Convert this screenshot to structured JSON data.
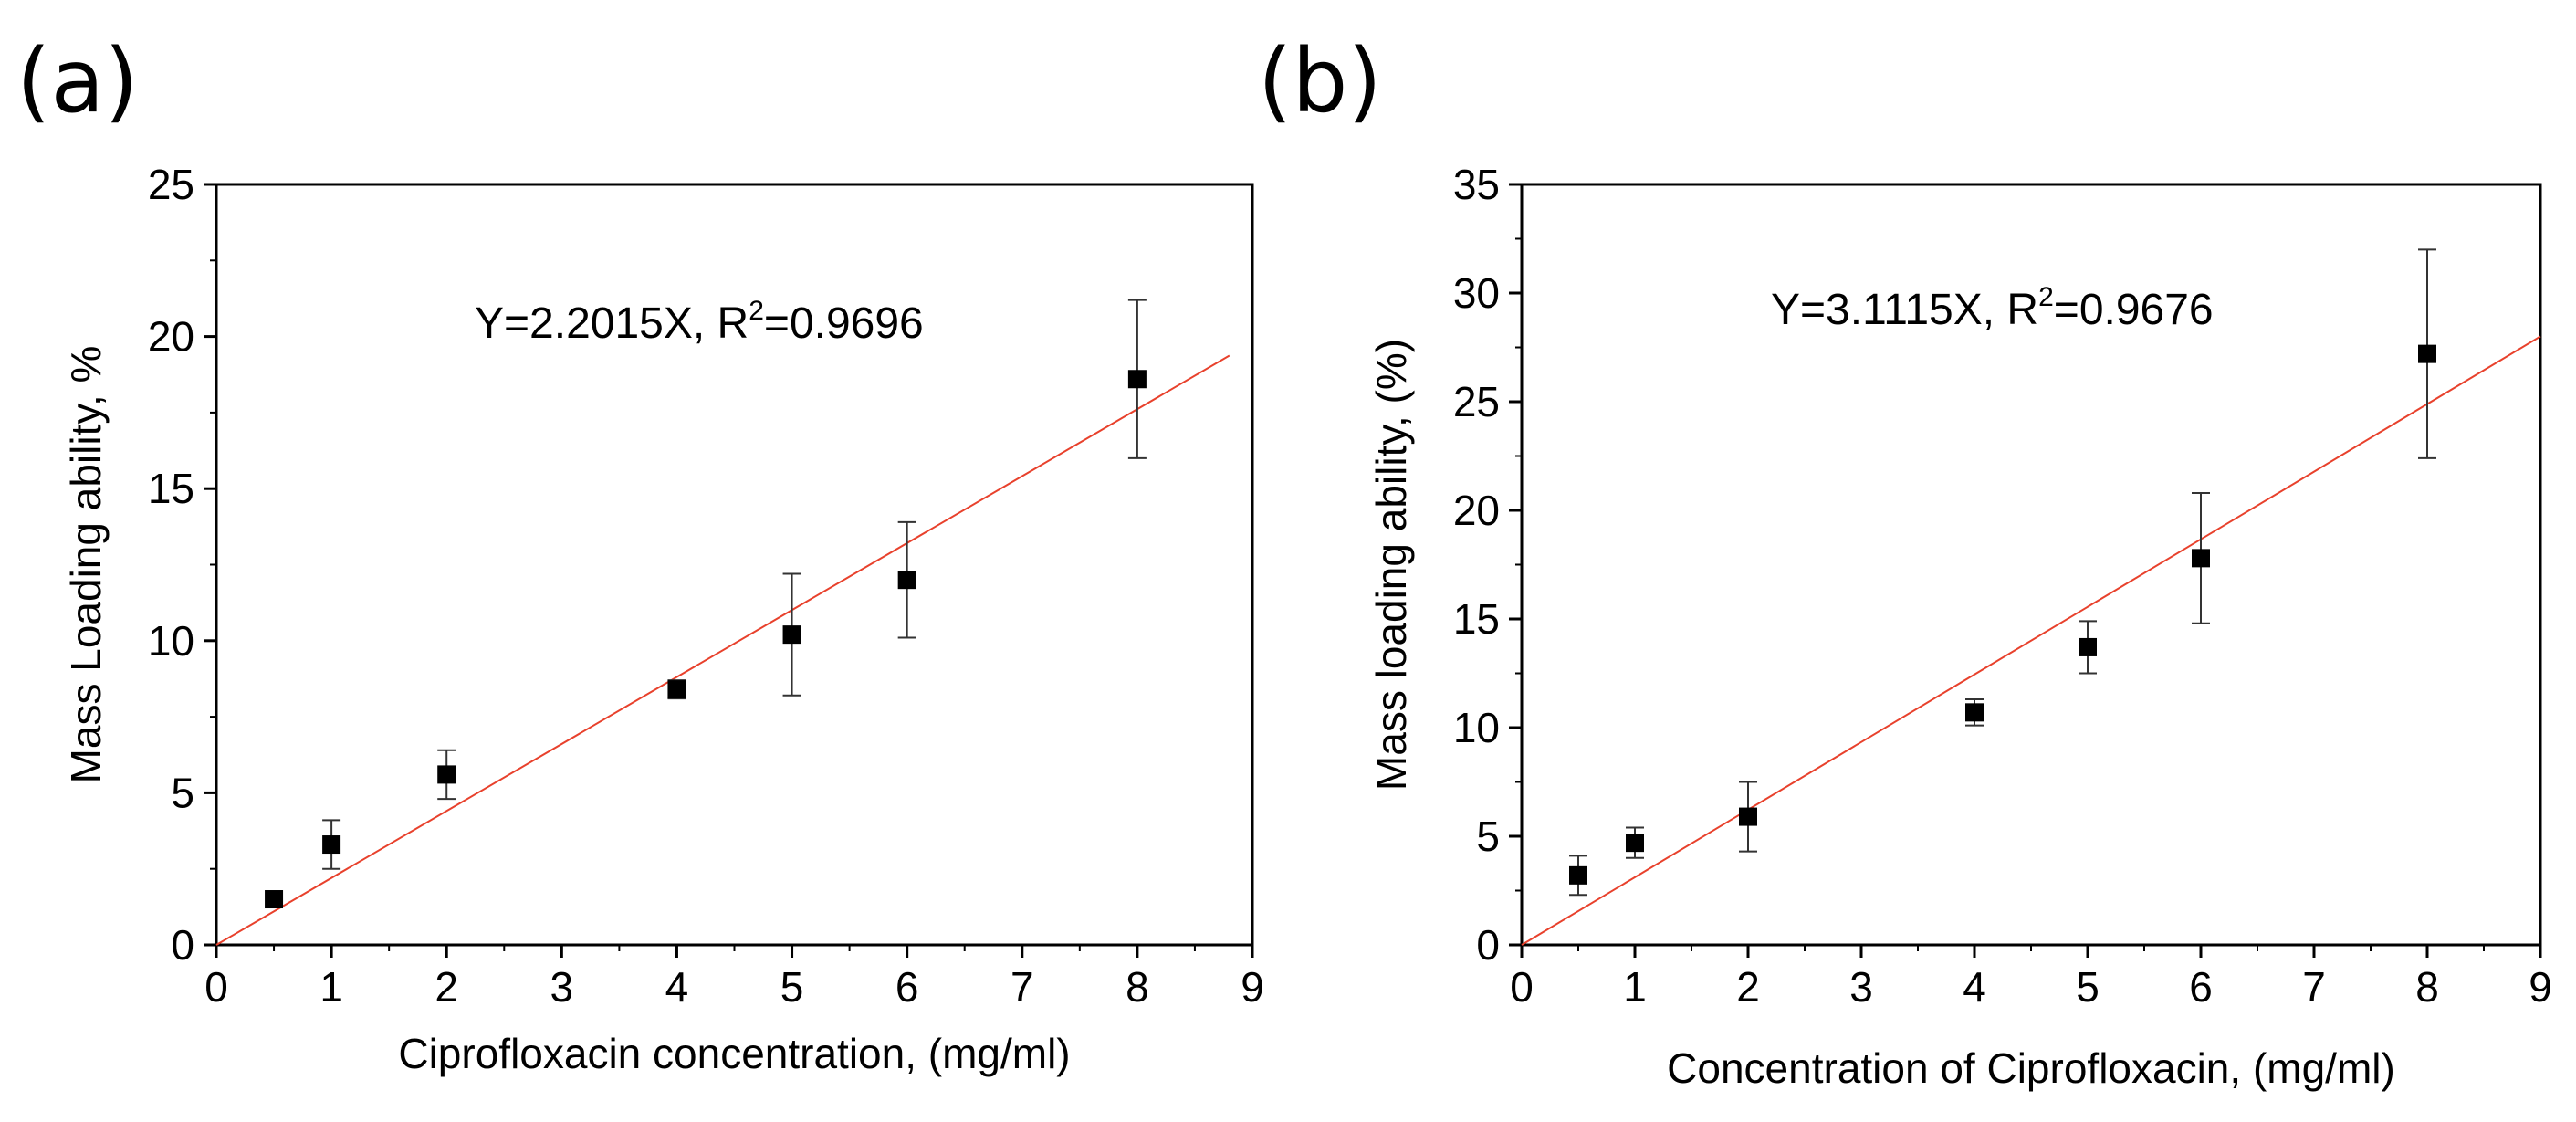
{
  "chart_data": [
    {
      "panel": "(a)",
      "type": "scatter",
      "xlabel": "Ciprofloxacin concentration, (mg/ml)",
      "ylabel": "Mass Loading ability, %",
      "xlim": [
        0,
        9
      ],
      "ylim": [
        0,
        25
      ],
      "xticks": [
        0,
        1,
        2,
        3,
        4,
        5,
        6,
        7,
        8,
        9
      ],
      "yticks": [
        0,
        5,
        10,
        15,
        20,
        25
      ],
      "annotation": {
        "prefix": "Y=2.2015X, R",
        "sup": "2",
        "suffix": "=0.9696"
      },
      "points": [
        {
          "x": 0.5,
          "y": 1.5,
          "err": 0.0
        },
        {
          "x": 1,
          "y": 3.3,
          "err": 0.8
        },
        {
          "x": 2,
          "y": 5.6,
          "err": 0.8
        },
        {
          "x": 4,
          "y": 8.4,
          "err": 0.3
        },
        {
          "x": 5,
          "y": 10.2,
          "err": 2.0
        },
        {
          "x": 6,
          "y": 12.0,
          "err": 1.9
        },
        {
          "x": 8,
          "y": 18.6,
          "err": 2.6
        }
      ],
      "fit": {
        "slope": 2.2015,
        "x_range": [
          0,
          8.8
        ]
      },
      "colors": {
        "points": "#000000",
        "fit": "#e8412c"
      }
    },
    {
      "panel": "(b)",
      "type": "scatter",
      "xlabel": "Concentration of Ciprofloxacin, (mg/ml)",
      "ylabel": "Mass loading ability, (%)",
      "xlim": [
        0,
        9
      ],
      "ylim": [
        0,
        35
      ],
      "xticks": [
        0,
        1,
        2,
        3,
        4,
        5,
        6,
        7,
        8,
        9
      ],
      "yticks": [
        0,
        5,
        10,
        15,
        20,
        25,
        30,
        35
      ],
      "annotation": {
        "prefix": "Y=3.1115X, R",
        "sup": "2",
        "suffix": "=0.9676"
      },
      "points": [
        {
          "x": 0.5,
          "y": 3.2,
          "err": 0.9
        },
        {
          "x": 1,
          "y": 4.7,
          "err": 0.7
        },
        {
          "x": 2,
          "y": 5.9,
          "err": 1.6
        },
        {
          "x": 4,
          "y": 10.7,
          "err": 0.6
        },
        {
          "x": 5,
          "y": 13.7,
          "err": 1.2
        },
        {
          "x": 6,
          "y": 17.8,
          "err": 3.0
        },
        {
          "x": 8,
          "y": 27.2,
          "err": 4.8
        }
      ],
      "fit": {
        "slope": 3.1115,
        "x_range": [
          0,
          9
        ]
      },
      "colors": {
        "points": "#000000",
        "fit": "#e8412c"
      }
    }
  ]
}
